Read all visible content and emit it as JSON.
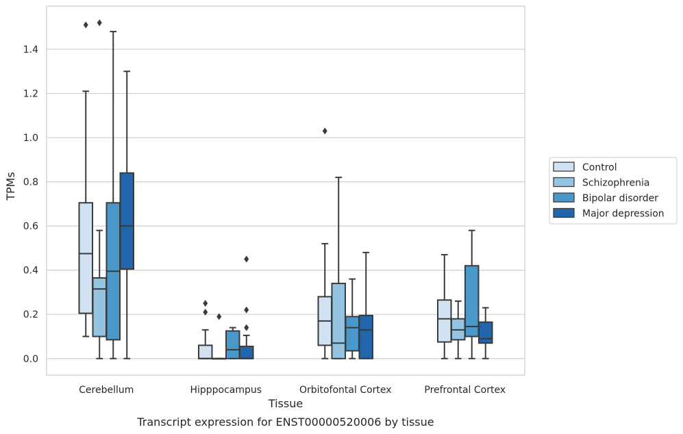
{
  "chart_data": {
    "type": "box",
    "title": "Transcript expression for ENST00000520006 by tissue",
    "xlabel": "Tissue",
    "ylabel": "TPMs",
    "ylim": [
      -0.075,
      1.595
    ],
    "yticks": [
      0.0,
      0.2,
      0.4,
      0.6,
      0.8,
      1.0,
      1.2,
      1.4
    ],
    "ytick_labels": [
      "0.0",
      "0.2",
      "0.4",
      "0.6",
      "0.8",
      "1.0",
      "1.2",
      "1.4"
    ],
    "grid": true,
    "legend_position": "right",
    "categories": [
      "Cerebellum",
      "Hipppocampus",
      "Orbitofontal Cortex",
      "Prefrontal Cortex"
    ],
    "series": [
      {
        "name": "Control",
        "color": "#d0e1f2",
        "boxes": [
          {
            "whislo": 0.1,
            "q1": 0.205,
            "med": 0.475,
            "q3": 0.705,
            "whishi": 1.21,
            "fliers": [
              1.51
            ]
          },
          {
            "whislo": 0.0,
            "q1": 0.0,
            "med": 0.0,
            "q3": 0.06,
            "whishi": 0.13,
            "fliers": [
              0.21,
              0.25
            ]
          },
          {
            "whislo": 0.0,
            "q1": 0.06,
            "med": 0.17,
            "q3": 0.28,
            "whishi": 0.52,
            "fliers": [
              1.03
            ]
          },
          {
            "whislo": 0.0,
            "q1": 0.075,
            "med": 0.18,
            "q3": 0.265,
            "whishi": 0.47,
            "fliers": []
          }
        ]
      },
      {
        "name": "Schizophrenia",
        "color": "#94c4df",
        "boxes": [
          {
            "whislo": 0.0,
            "q1": 0.1,
            "med": 0.315,
            "q3": 0.365,
            "whishi": 0.58,
            "fliers": [
              1.52
            ]
          },
          {
            "whislo": 0.0,
            "q1": 0.0,
            "med": 0.0,
            "q3": 0.0,
            "whishi": 0.0,
            "fliers": [
              0.19
            ]
          },
          {
            "whislo": 0.0,
            "q1": 0.0,
            "med": 0.07,
            "q3": 0.34,
            "whishi": 0.82,
            "fliers": []
          },
          {
            "whislo": 0.0,
            "q1": 0.085,
            "med": 0.13,
            "q3": 0.18,
            "whishi": 0.26,
            "fliers": []
          }
        ]
      },
      {
        "name": "Bipolar disorder",
        "color": "#4a98c9",
        "boxes": [
          {
            "whislo": 0.0,
            "q1": 0.085,
            "med": 0.395,
            "q3": 0.705,
            "whishi": 1.48,
            "fliers": []
          },
          {
            "whislo": 0.0,
            "q1": 0.0,
            "med": 0.04,
            "q3": 0.125,
            "whishi": 0.14,
            "fliers": []
          },
          {
            "whislo": 0.0,
            "q1": 0.035,
            "med": 0.14,
            "q3": 0.19,
            "whishi": 0.36,
            "fliers": []
          },
          {
            "whislo": 0.0,
            "q1": 0.1,
            "med": 0.145,
            "q3": 0.42,
            "whishi": 0.58,
            "fliers": []
          }
        ]
      },
      {
        "name": "Major depression",
        "color": "#2166ac",
        "boxes": [
          {
            "whislo": 0.0,
            "q1": 0.405,
            "med": 0.6,
            "q3": 0.84,
            "whishi": 1.3,
            "fliers": []
          },
          {
            "whislo": 0.0,
            "q1": 0.0,
            "med": 0.0,
            "q3": 0.055,
            "whishi": 0.105,
            "fliers": [
              0.14,
              0.22,
              0.45
            ]
          },
          {
            "whislo": 0.0,
            "q1": 0.0,
            "med": 0.13,
            "q3": 0.195,
            "whishi": 0.48,
            "fliers": []
          },
          {
            "whislo": 0.0,
            "q1": 0.07,
            "med": 0.09,
            "q3": 0.165,
            "whishi": 0.23,
            "fliers": []
          }
        ]
      }
    ]
  }
}
